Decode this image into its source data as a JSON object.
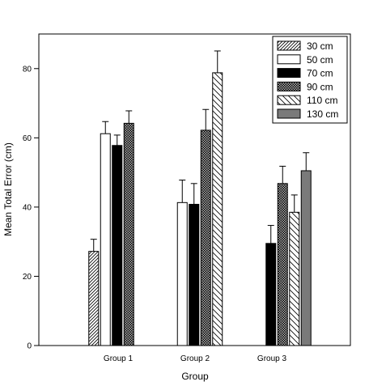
{
  "chart_data": {
    "type": "bar",
    "xlabel": "Group",
    "ylabel": "Mean Total Error (cm)",
    "ylim": [
      0,
      90
    ],
    "yticks": [
      0,
      20,
      40,
      60,
      80
    ],
    "grid": false,
    "legend_position": "top-right",
    "categories": [
      "Group 1",
      "Group 2",
      "Group 3"
    ],
    "series": [
      {
        "name": "30 cm",
        "pattern": "diag-forward",
        "values": [
          27.2,
          null,
          null
        ],
        "errors": [
          3.5,
          null,
          null
        ]
      },
      {
        "name": "50 cm",
        "pattern": "white",
        "values": [
          61.2,
          41.3,
          null
        ],
        "errors": [
          3.5,
          6.5,
          null
        ]
      },
      {
        "name": "70 cm",
        "pattern": "black",
        "values": [
          57.8,
          40.8,
          29.5
        ],
        "errors": [
          3.0,
          6.0,
          5.2
        ]
      },
      {
        "name": "90 cm",
        "pattern": "crosshatch",
        "values": [
          64.2,
          62.2,
          46.8
        ],
        "errors": [
          3.6,
          6.0,
          5.0
        ]
      },
      {
        "name": "110 cm",
        "pattern": "diag-back",
        "values": [
          null,
          78.8,
          38.5
        ],
        "errors": [
          null,
          6.3,
          5.0
        ]
      },
      {
        "name": "130 cm",
        "pattern": "gray",
        "values": [
          null,
          null,
          50.5
        ],
        "errors": [
          null,
          null,
          5.2
        ]
      }
    ]
  }
}
